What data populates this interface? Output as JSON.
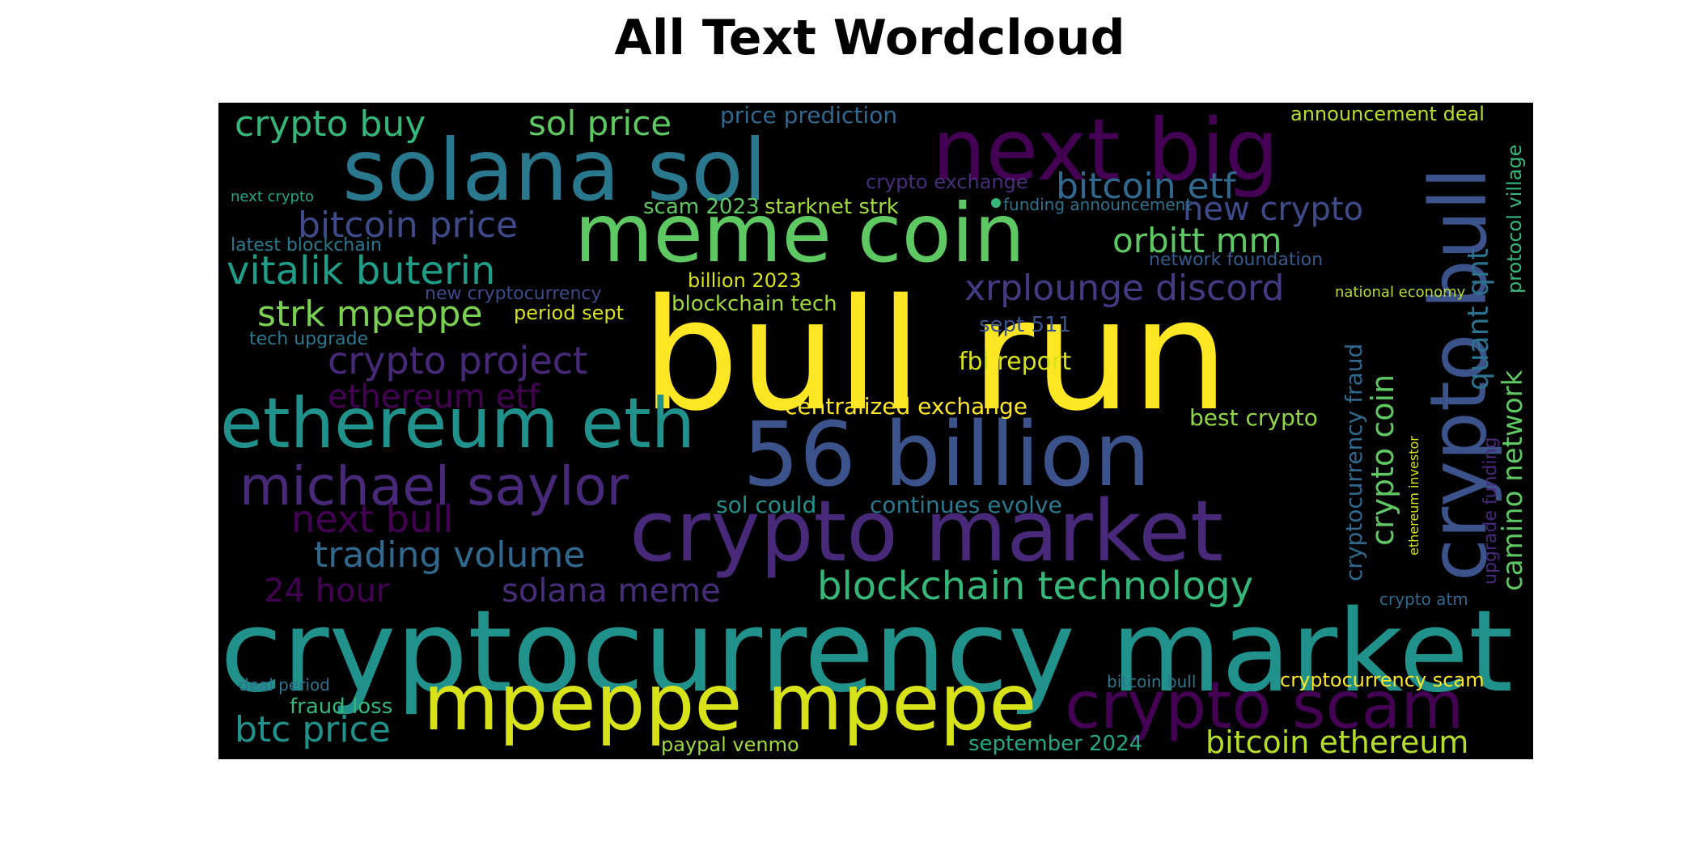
{
  "title": "All Text Wordcloud",
  "cloud": {
    "background": "#000000",
    "palette": "viridis",
    "words": [
      {
        "text": "bull run",
        "color": "#fde725"
      },
      {
        "text": "cryptocurrency market",
        "color": "#21918c"
      },
      {
        "text": "solana sol",
        "color": "#2a788e"
      },
      {
        "text": "next big",
        "color": "#440154"
      },
      {
        "text": "meme coin",
        "color": "#5ec962"
      },
      {
        "text": "crypto bull",
        "color": "#3b528b"
      },
      {
        "text": "56 billion",
        "color": "#3b528b"
      },
      {
        "text": "ethereum eth",
        "color": "#21918c"
      },
      {
        "text": "crypto market",
        "color": "#482878"
      },
      {
        "text": "michael saylor",
        "color": "#482878"
      },
      {
        "text": "mpeppe mpepe",
        "color": "#d8e219"
      },
      {
        "text": "crypto scam",
        "color": "#440154"
      },
      {
        "text": "crypto buy",
        "color": "#35b779"
      },
      {
        "text": "sol price",
        "color": "#5ec962"
      },
      {
        "text": "price prediction",
        "color": "#31688e"
      },
      {
        "text": "announcement deal",
        "color": "#b5de2b"
      },
      {
        "text": "protocol village",
        "color": "#35b779"
      },
      {
        "text": "crypto exchange",
        "color": "#472d7b"
      },
      {
        "text": "bitcoin etf",
        "color": "#31688e"
      },
      {
        "text": "new crypto",
        "color": "#3e4a89"
      },
      {
        "text": "next crypto",
        "color": "#21a585"
      },
      {
        "text": "scam 2023",
        "color": "#5ec962"
      },
      {
        "text": "starknet strk",
        "color": "#a0da39"
      },
      {
        "text": "funding announcement",
        "color": "#2c728e"
      },
      {
        "text": "bitcoin price",
        "color": "#3e4a89"
      },
      {
        "text": "latest blockchain",
        "color": "#2a788e"
      },
      {
        "text": "orbitt mm",
        "color": "#5ec962"
      },
      {
        "text": "quant qnt",
        "color": "#2c728e"
      },
      {
        "text": "network foundation",
        "color": "#38598c"
      },
      {
        "text": "vitalik buterin",
        "color": "#1f9e89"
      },
      {
        "text": "billion 2023",
        "color": "#d8e219"
      },
      {
        "text": "xrplounge discord",
        "color": "#443983"
      },
      {
        "text": "national economy",
        "color": "#b5de2b"
      },
      {
        "text": "new cryptocurrency",
        "color": "#3e4a89"
      },
      {
        "text": "blockchain tech",
        "color": "#9fda3a"
      },
      {
        "text": "strk mpeppe",
        "color": "#7ad151"
      },
      {
        "text": "period sept",
        "color": "#d8e219"
      },
      {
        "text": "tech upgrade",
        "color": "#2a788e"
      },
      {
        "text": "sept 511",
        "color": "#3b528b"
      },
      {
        "text": "camino network",
        "color": "#5ec962"
      },
      {
        "text": "crypto project",
        "color": "#482878"
      },
      {
        "text": "fbi report",
        "color": "#d8e219"
      },
      {
        "text": "cryptocurrency fraud",
        "color": "#31688e"
      },
      {
        "text": "crypto coin",
        "color": "#5ec962"
      },
      {
        "text": "ethereum etf",
        "color": "#440154"
      },
      {
        "text": "centralized exchange",
        "color": "#fde725"
      },
      {
        "text": "best crypto",
        "color": "#90d743"
      },
      {
        "text": "ethereum investor",
        "color": "#d8e219"
      },
      {
        "text": "upgrade funding",
        "color": "#482878"
      },
      {
        "text": "sol could",
        "color": "#21918c"
      },
      {
        "text": "continues evolve",
        "color": "#2a788e"
      },
      {
        "text": "next bull",
        "color": "#440154"
      },
      {
        "text": "trading volume",
        "color": "#31688e"
      },
      {
        "text": "24 hour",
        "color": "#440154"
      },
      {
        "text": "solana meme",
        "color": "#472d7b"
      },
      {
        "text": "blockchain technology",
        "color": "#35b779"
      },
      {
        "text": "crypto atm",
        "color": "#31688e"
      },
      {
        "text": "deal period",
        "color": "#2c728e"
      },
      {
        "text": "bitcoin bull",
        "color": "#2a788e"
      },
      {
        "text": "cryptocurrency scam",
        "color": "#fde725"
      },
      {
        "text": "fraud loss",
        "color": "#35b779"
      },
      {
        "text": "btc price",
        "color": "#21918c"
      },
      {
        "text": "paypal venmo",
        "color": "#9fda3a"
      },
      {
        "text": "september 2024",
        "color": "#22a884"
      },
      {
        "text": "bitcoin ethereum",
        "color": "#b5de2b"
      }
    ]
  }
}
